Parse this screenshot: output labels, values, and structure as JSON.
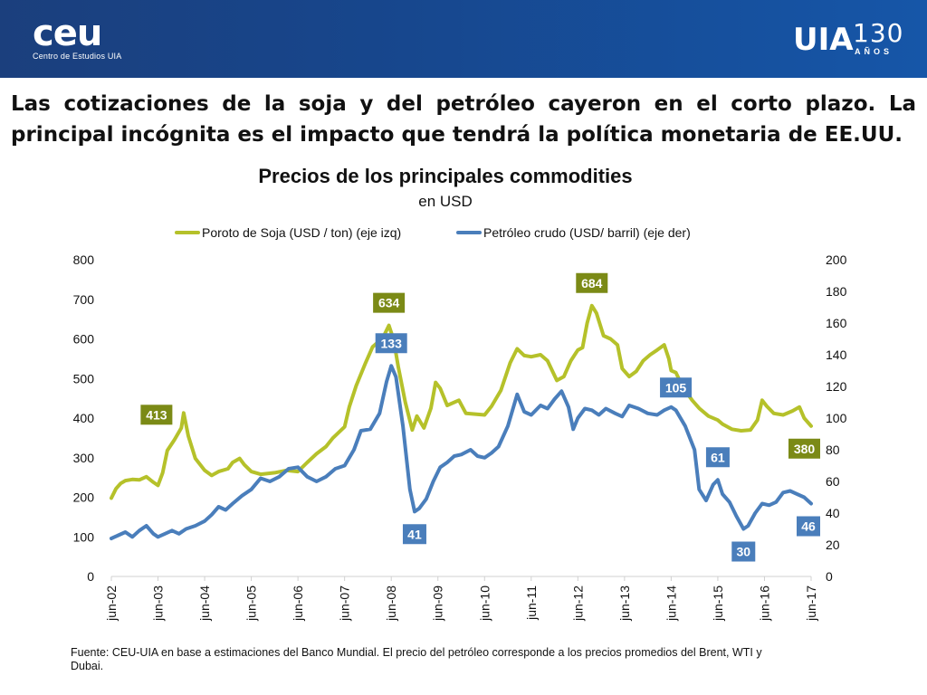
{
  "header": {
    "left_logo": {
      "name": "ceu",
      "subtitle": "Centro de Estudios UIA"
    },
    "right_logo": {
      "name": "UIA",
      "number": "130",
      "label": "AÑOS"
    }
  },
  "headline": "Las cotizaciones de la soja y del petróleo cayeron en el corto plazo. La principal incógnita es el impacto que tendrá la política monetaria de EE.UU.",
  "source_note": "Fuente: CEU-UIA en base a estimaciones del Banco Mundial. El precio del petróleo corresponde a los precios promedios del Brent, WTI y Dubai.",
  "colors": {
    "soy": "#b5c12a",
    "oil": "#4a7ebb",
    "soy_label_bg": "#7b8a16",
    "oil_label_bg": "#4a7ebb",
    "header": "#1b3f7d"
  },
  "chart_data": {
    "type": "line",
    "title": "Precios de los principales commodities",
    "subtitle": "en USD",
    "legend_position": "top",
    "grid": false,
    "x_categories": [
      "jun-02",
      "jun-03",
      "jun-04",
      "jun-05",
      "jun-06",
      "jun-07",
      "jun-08",
      "jun-09",
      "jun-10",
      "jun-11",
      "jun-12",
      "jun-13",
      "jun-14",
      "jun-15",
      "jun-16",
      "jun-17"
    ],
    "y_left": {
      "min": 0,
      "max": 800,
      "ticks": [
        "0",
        "100",
        "200",
        "300",
        "400",
        "500",
        "600",
        "700",
        "800"
      ]
    },
    "y_right": {
      "min": 0,
      "max": 200,
      "ticks": [
        "0",
        "20",
        "40",
        "60",
        "80",
        "100",
        "120",
        "140",
        "160",
        "180",
        "200"
      ]
    },
    "series": [
      {
        "name": "Poroto de Soja (USD / ton) (eje izq)",
        "axis": "left",
        "points": [
          [
            0,
            198
          ],
          [
            0.1,
            222
          ],
          [
            0.2,
            235
          ],
          [
            0.3,
            242
          ],
          [
            0.45,
            245
          ],
          [
            0.6,
            244
          ],
          [
            0.75,
            252
          ],
          [
            0.9,
            238
          ],
          [
            1.0,
            230
          ],
          [
            1.1,
            262
          ],
          [
            1.2,
            318
          ],
          [
            1.35,
            345
          ],
          [
            1.5,
            375
          ],
          [
            1.55,
            413
          ],
          [
            1.65,
            355
          ],
          [
            1.8,
            298
          ],
          [
            2.0,
            268
          ],
          [
            2.15,
            255
          ],
          [
            2.3,
            265
          ],
          [
            2.5,
            272
          ],
          [
            2.6,
            288
          ],
          [
            2.75,
            298
          ],
          [
            2.85,
            282
          ],
          [
            3.0,
            265
          ],
          [
            3.2,
            258
          ],
          [
            3.5,
            262
          ],
          [
            3.75,
            268
          ],
          [
            4.0,
            265
          ],
          [
            4.2,
            288
          ],
          [
            4.4,
            310
          ],
          [
            4.6,
            328
          ],
          [
            4.75,
            350
          ],
          [
            5.0,
            378
          ],
          [
            5.1,
            428
          ],
          [
            5.25,
            482
          ],
          [
            5.45,
            540
          ],
          [
            5.6,
            580
          ],
          [
            5.75,
            595
          ],
          [
            5.85,
            610
          ],
          [
            5.95,
            634
          ],
          [
            6.05,
            598
          ],
          [
            6.15,
            530
          ],
          [
            6.3,
            440
          ],
          [
            6.45,
            370
          ],
          [
            6.55,
            405
          ],
          [
            6.7,
            375
          ],
          [
            6.85,
            425
          ],
          [
            6.95,
            490
          ],
          [
            7.05,
            475
          ],
          [
            7.2,
            432
          ],
          [
            7.45,
            445
          ],
          [
            7.6,
            412
          ],
          [
            7.8,
            410
          ],
          [
            8.0,
            408
          ],
          [
            8.15,
            430
          ],
          [
            8.35,
            470
          ],
          [
            8.55,
            540
          ],
          [
            8.7,
            575
          ],
          [
            8.85,
            558
          ],
          [
            9.0,
            555
          ],
          [
            9.2,
            560
          ],
          [
            9.35,
            545
          ],
          [
            9.55,
            495
          ],
          [
            9.7,
            505
          ],
          [
            9.85,
            545
          ],
          [
            10.0,
            572
          ],
          [
            10.1,
            578
          ],
          [
            10.2,
            640
          ],
          [
            10.3,
            684
          ],
          [
            10.4,
            665
          ],
          [
            10.55,
            608
          ],
          [
            10.7,
            600
          ],
          [
            10.85,
            585
          ],
          [
            10.95,
            525
          ],
          [
            11.1,
            505
          ],
          [
            11.25,
            518
          ],
          [
            11.4,
            545
          ],
          [
            11.55,
            560
          ],
          [
            11.7,
            572
          ],
          [
            11.85,
            585
          ],
          [
            11.95,
            550
          ],
          [
            12.0,
            520
          ],
          [
            12.1,
            515
          ],
          [
            12.25,
            478
          ],
          [
            12.45,
            445
          ],
          [
            12.6,
            425
          ],
          [
            12.8,
            405
          ],
          [
            13.0,
            395
          ],
          [
            13.1,
            385
          ],
          [
            13.3,
            372
          ],
          [
            13.5,
            368
          ],
          [
            13.7,
            370
          ],
          [
            13.85,
            395
          ],
          [
            13.95,
            445
          ],
          [
            14.05,
            430
          ],
          [
            14.2,
            412
          ],
          [
            14.4,
            408
          ],
          [
            14.6,
            418
          ],
          [
            14.75,
            428
          ],
          [
            14.85,
            400
          ],
          [
            15.0,
            380
          ]
        ]
      },
      {
        "name": "Petróleo crudo (USD/ barril) (eje der)",
        "axis": "right",
        "points": [
          [
            0,
            24
          ],
          [
            0.15,
            26
          ],
          [
            0.3,
            28
          ],
          [
            0.45,
            25
          ],
          [
            0.6,
            29
          ],
          [
            0.75,
            32
          ],
          [
            0.9,
            27
          ],
          [
            1.0,
            25
          ],
          [
            1.15,
            27
          ],
          [
            1.3,
            29
          ],
          [
            1.45,
            27
          ],
          [
            1.6,
            30
          ],
          [
            1.8,
            32
          ],
          [
            2.0,
            35
          ],
          [
            2.15,
            39
          ],
          [
            2.3,
            44
          ],
          [
            2.45,
            42
          ],
          [
            2.6,
            46
          ],
          [
            2.8,
            51
          ],
          [
            3.0,
            55
          ],
          [
            3.2,
            62
          ],
          [
            3.4,
            60
          ],
          [
            3.6,
            63
          ],
          [
            3.8,
            68
          ],
          [
            4.0,
            69
          ],
          [
            4.2,
            63
          ],
          [
            4.4,
            60
          ],
          [
            4.6,
            63
          ],
          [
            4.8,
            68
          ],
          [
            5.0,
            70
          ],
          [
            5.2,
            80
          ],
          [
            5.35,
            92
          ],
          [
            5.55,
            93
          ],
          [
            5.75,
            103
          ],
          [
            5.9,
            123
          ],
          [
            6.0,
            133
          ],
          [
            6.1,
            126
          ],
          [
            6.25,
            95
          ],
          [
            6.4,
            55
          ],
          [
            6.5,
            41
          ],
          [
            6.6,
            43
          ],
          [
            6.75,
            49
          ],
          [
            6.9,
            60
          ],
          [
            7.05,
            69
          ],
          [
            7.2,
            72
          ],
          [
            7.35,
            76
          ],
          [
            7.5,
            77
          ],
          [
            7.7,
            80
          ],
          [
            7.85,
            76
          ],
          [
            8.0,
            75
          ],
          [
            8.15,
            78
          ],
          [
            8.3,
            82
          ],
          [
            8.5,
            95
          ],
          [
            8.7,
            115
          ],
          [
            8.85,
            104
          ],
          [
            9.0,
            102
          ],
          [
            9.2,
            108
          ],
          [
            9.35,
            106
          ],
          [
            9.5,
            112
          ],
          [
            9.65,
            117
          ],
          [
            9.8,
            107
          ],
          [
            9.9,
            93
          ],
          [
            10.0,
            100
          ],
          [
            10.15,
            106
          ],
          [
            10.3,
            105
          ],
          [
            10.45,
            102
          ],
          [
            10.6,
            106
          ],
          [
            10.8,
            103
          ],
          [
            10.95,
            101
          ],
          [
            11.1,
            108
          ],
          [
            11.3,
            106
          ],
          [
            11.5,
            103
          ],
          [
            11.7,
            102
          ],
          [
            11.85,
            105
          ],
          [
            12.0,
            107
          ],
          [
            12.1,
            105
          ],
          [
            12.3,
            95
          ],
          [
            12.5,
            80
          ],
          [
            12.6,
            55
          ],
          [
            12.75,
            48
          ],
          [
            12.9,
            58
          ],
          [
            13.0,
            61
          ],
          [
            13.1,
            52
          ],
          [
            13.25,
            47
          ],
          [
            13.4,
            38
          ],
          [
            13.55,
            30
          ],
          [
            13.65,
            32
          ],
          [
            13.8,
            40
          ],
          [
            13.95,
            46
          ],
          [
            14.1,
            45
          ],
          [
            14.25,
            47
          ],
          [
            14.4,
            53
          ],
          [
            14.55,
            54
          ],
          [
            14.7,
            52
          ],
          [
            14.85,
            50
          ],
          [
            15.0,
            46
          ]
        ]
      }
    ],
    "data_labels": [
      {
        "series": 0,
        "x": 1.55,
        "value": 413,
        "text": "413",
        "placement": "left"
      },
      {
        "series": 0,
        "x": 5.95,
        "value": 634,
        "text": "634",
        "placement": "above"
      },
      {
        "series": 0,
        "x": 10.3,
        "value": 684,
        "text": "684",
        "placement": "above"
      },
      {
        "series": 0,
        "x": 15.0,
        "value": 380,
        "text": "380",
        "placement": "below"
      },
      {
        "series": 1,
        "x": 6.0,
        "value": 133,
        "text": "133",
        "placement": "above"
      },
      {
        "series": 1,
        "x": 6.5,
        "value": 41,
        "text": "41",
        "placement": "below"
      },
      {
        "series": 1,
        "x": 12.1,
        "value": 105,
        "text": "105",
        "placement": "above"
      },
      {
        "series": 1,
        "x": 13.0,
        "value": 61,
        "text": "61",
        "placement": "above"
      },
      {
        "series": 1,
        "x": 13.55,
        "value": 30,
        "text": "30",
        "placement": "below"
      },
      {
        "series": 1,
        "x": 15.0,
        "value": 46,
        "text": "46",
        "placement": "below"
      }
    ]
  }
}
